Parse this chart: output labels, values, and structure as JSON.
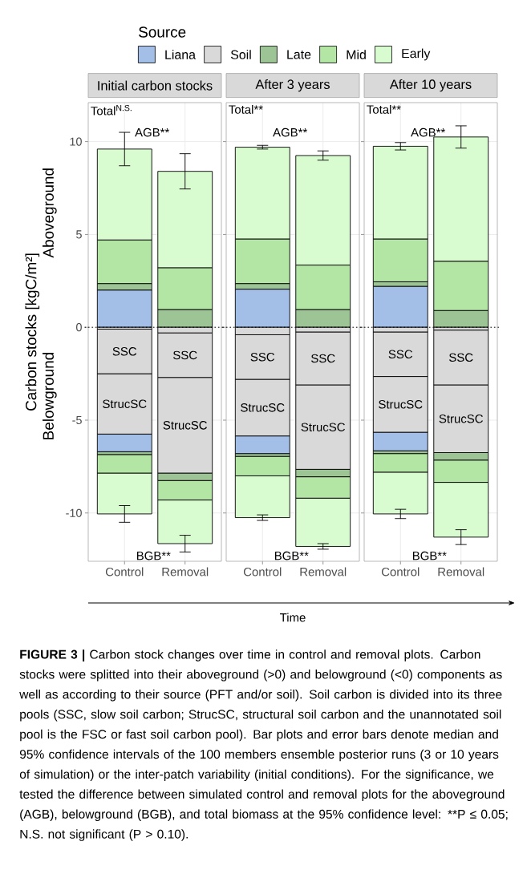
{
  "chart_data": [
    {
      "type": "bar",
      "title": "Initial carbon stocks",
      "ylabel": "Carbon stocks [kgC/m²]",
      "legend_title": "Source",
      "legend": "top",
      "stacked": true,
      "grid": true,
      "categories": [
        "Control",
        "Removal"
      ],
      "ylim": [
        -12.6,
        12.1
      ],
      "yticks": [
        -10,
        -5,
        0,
        5,
        10
      ],
      "ref_lines": [
        {
          "axis": "y",
          "value": 0,
          "line_style": "dotted"
        }
      ],
      "series": [
        {
          "name": "Liana",
          "color": "#a3bfe8",
          "values": [
            2.0,
            0
          ]
        },
        {
          "color": "#9dc495",
          "values": [
            0.35,
            0.95
          ]
        },
        {
          "color": "#b3e6a5",
          "values": [
            2.35,
            2.25
          ]
        },
        {
          "color": "#d8fbd0",
          "values": [
            4.9,
            5.2
          ],
          "errors": [
            0.9,
            0.95
          ]
        },
        {
          "name": "Soil",
          "color": "#d9d9d9",
          "values": [
            -0.1,
            -0.3
          ]
        },
        {
          "color": "#d9d9d9",
          "values": [
            -2.4,
            -2.4
          ]
        },
        {
          "color": "#d9d9d9",
          "values": [
            -3.25,
            -5.15
          ]
        },
        {
          "color": "#a3bfe8",
          "values": [
            -0.95,
            0
          ]
        },
        {
          "name": "Late",
          "color": "#9dc495",
          "values": [
            -0.15,
            -0.4
          ]
        },
        {
          "name": "Mid",
          "color": "#b3e6a5",
          "values": [
            -1.0,
            -1.05
          ]
        },
        {
          "name": "Early",
          "color": "#d8fbd0",
          "values": [
            -2.2,
            -2.35
          ],
          "errors": [
            0.45,
            0.45
          ]
        }
      ],
      "annotations": [
        "Total$^{N.S.}$",
        "AGB**",
        "BGB**",
        "SSC",
        "SSC",
        "StrucSC",
        "StrucSC",
        "Belowground",
        "Aboveground",
        "FIGURE 3 |",
        "Carbon stock changes over time in control and removal plots. Carbon stocks were splitted into their aboveground (>0) and belowground (<0) components as well as according to their source (PFT and/or soil). Soil carbon is divided into its three pools (SSC, slow soil carbon; StrucSC, structural soil carbon and the unannotated soil pool is the FSC or fast soil carbon pool). Bar plots and error bars denote median and 95% confidence intervals of the 100 members ensemble posterior runs (3 or 10 years of simulation) or the inter-patch variability (initial conditions). For the significance, we tested the difference between simulated control and removal plots for the aboveground (AGB), belowground (BGB), and total biomass at the 95% confidence level: **P ≤ 0.05; N.S. not significant (P > 0.10)."
      ]
    },
    {
      "type": "bar",
      "title": "After 3 years",
      "xlabel": "Time",
      "stacked": true,
      "grid": true,
      "tick_labels": "x",
      "categories": [
        "Control",
        "Removal"
      ],
      "ylim": [
        -12.6,
        12.1
      ],
      "yticks": [
        -10,
        -5,
        0,
        5,
        10
      ],
      "ref_lines": [
        {
          "axis": "y",
          "value": 0,
          "line_style": "dotted"
        }
      ],
      "series": [
        {
          "color": "#a3bfe8",
          "values": [
            2.05,
            0
          ]
        },
        {
          "color": "#9dc495",
          "values": [
            0.3,
            0.95
          ]
        },
        {
          "color": "#b3e6a5",
          "values": [
            2.4,
            2.4
          ]
        },
        {
          "color": "#d8fbd0",
          "values": [
            4.95,
            5.9
          ],
          "errors": [
            0.1,
            0.25
          ]
        },
        {
          "color": "#d9d9d9",
          "values": [
            -0.4,
            -0.25
          ]
        },
        {
          "color": "#d9d9d9",
          "values": [
            -2.4,
            -2.85
          ]
        },
        {
          "color": "#d9d9d9",
          "values": [
            -3.05,
            -4.55
          ]
        },
        {
          "color": "#a3bfe8",
          "values": [
            -0.95,
            0
          ]
        },
        {
          "color": "#9dc495",
          "values": [
            -0.15,
            -0.4
          ]
        },
        {
          "color": "#b3e6a5",
          "values": [
            -1.05,
            -1.15
          ]
        },
        {
          "color": "#d8fbd0",
          "values": [
            -2.25,
            -2.6
          ],
          "errors": [
            0.15,
            0.15
          ]
        }
      ],
      "annotations": [
        "Total**",
        "AGB**",
        "BGB**",
        "SSC",
        "SSC",
        "StrucSC",
        "StrucSC"
      ]
    },
    {
      "type": "bar",
      "title": "After 10 years",
      "stacked": true,
      "grid": true,
      "tick_labels": "x",
      "categories": [
        "Control",
        "Removal"
      ],
      "ylim": [
        -12.6,
        12.1
      ],
      "yticks": [
        -10,
        -5,
        0,
        5,
        10
      ],
      "ref_lines": [
        {
          "axis": "y",
          "value": 0,
          "line_style": "dotted"
        }
      ],
      "series": [
        {
          "color": "#a3bfe8",
          "values": [
            2.2,
            0
          ]
        },
        {
          "color": "#9dc495",
          "values": [
            0.25,
            0.9
          ]
        },
        {
          "color": "#b3e6a5",
          "values": [
            2.3,
            2.65
          ]
        },
        {
          "color": "#d8fbd0",
          "values": [
            5.0,
            6.7
          ],
          "errors": [
            0.2,
            0.6
          ]
        },
        {
          "color": "#d9d9d9",
          "values": [
            -0.25,
            -0.15
          ]
        },
        {
          "color": "#d9d9d9",
          "values": [
            -2.4,
            -2.95
          ]
        },
        {
          "color": "#d9d9d9",
          "values": [
            -3.0,
            -3.65
          ]
        },
        {
          "color": "#a3bfe8",
          "values": [
            -1.0,
            0
          ]
        },
        {
          "color": "#9dc495",
          "values": [
            -0.15,
            -0.4
          ]
        },
        {
          "color": "#b3e6a5",
          "values": [
            -1.0,
            -1.2
          ]
        },
        {
          "color": "#d8fbd0",
          "values": [
            -2.25,
            -2.95
          ],
          "errors": [
            0.25,
            0.4
          ]
        }
      ],
      "annotations": [
        "Total**",
        "AGB**",
        "BGB**",
        "SSC",
        "SSC",
        "StrucSC",
        "StrucSC"
      ]
    }
  ]
}
